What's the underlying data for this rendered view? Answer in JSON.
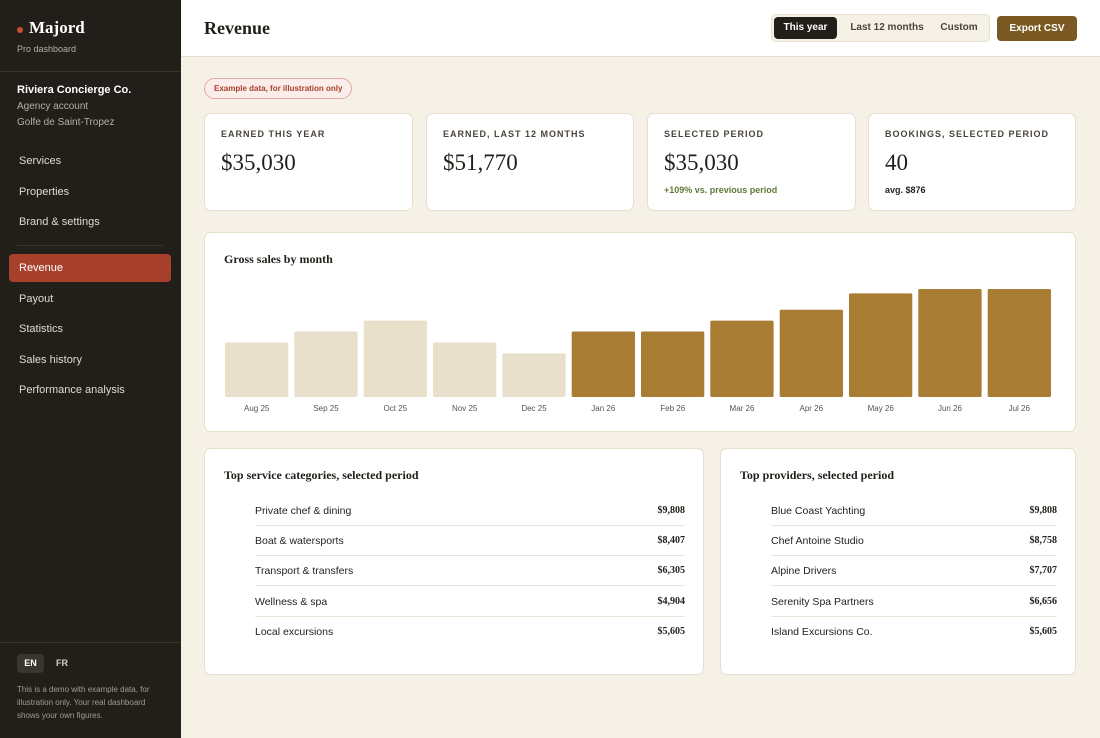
{
  "brand": {
    "name": "Majord",
    "subtitle": "Pro dashboard"
  },
  "account": {
    "name": "Riviera Concierge Co.",
    "type": "Agency account",
    "location": "Golfe de Saint-Tropez"
  },
  "nav": {
    "group1": [
      "Services",
      "Properties",
      "Brand & settings"
    ],
    "group2": [
      "Revenue",
      "Payout",
      "Statistics",
      "Sales history",
      "Performance analysis"
    ],
    "active": "Revenue"
  },
  "language": {
    "en": "EN",
    "fr": "FR",
    "active": "EN"
  },
  "sidebar_note": "This is a demo with example data, for illustration only. Your real dashboard shows your own figures.",
  "header": {
    "title": "Revenue",
    "period_options": [
      "This year",
      "Last 12 months",
      "Custom"
    ],
    "active_period": "This year",
    "export_label": "Export CSV"
  },
  "badge": "Example data, for illustration only",
  "stats": [
    {
      "label": "EARNED THIS YEAR",
      "value": "$35,030"
    },
    {
      "label": "EARNED, LAST 12 MONTHS",
      "value": "$51,770"
    },
    {
      "label": "SELECTED PERIOD",
      "value": "$35,030",
      "delta": "+109% vs. previous period"
    },
    {
      "label": "BOOKINGS, SELECTED PERIOD",
      "value": "40",
      "sub": "avg. $876"
    }
  ],
  "chart_data": {
    "type": "bar",
    "title": "Gross sales by month",
    "categories": [
      "Aug 25",
      "Sep 25",
      "Oct 25",
      "Nov 25",
      "Dec 25",
      "Jan 26",
      "Feb 26",
      "Mar 26",
      "Apr 26",
      "May 26",
      "Jun 26",
      "Jul 26"
    ],
    "values": [
      5000,
      6000,
      7000,
      5000,
      4000,
      6000,
      6000,
      7000,
      8000,
      9500,
      9900,
      9900
    ],
    "highlight_from_index": 5,
    "colors": {
      "base": "#e8e0cb",
      "highlight": "#a87c32"
    },
    "ylim": [
      0,
      9900
    ],
    "grid": false,
    "legend": "none"
  },
  "categories_panel": {
    "title": "Top service categories, selected period",
    "rows": [
      {
        "label": "Private chef & dining",
        "value": "$9,808"
      },
      {
        "label": "Boat & watersports",
        "value": "$8,407"
      },
      {
        "label": "Transport & transfers",
        "value": "$6,305"
      },
      {
        "label": "Wellness & spa",
        "value": "$4,904"
      },
      {
        "label": "Local excursions",
        "value": "$5,605"
      }
    ]
  },
  "providers_panel": {
    "title": "Top providers, selected period",
    "rows": [
      {
        "label": "Blue Coast Yachting",
        "value": "$9,808"
      },
      {
        "label": "Chef Antoine Studio",
        "value": "$8,758"
      },
      {
        "label": "Alpine Drivers",
        "value": "$7,707"
      },
      {
        "label": "Serenity Spa Partners",
        "value": "$6,656"
      },
      {
        "label": "Island Excursions Co.",
        "value": "$5,605"
      }
    ]
  }
}
